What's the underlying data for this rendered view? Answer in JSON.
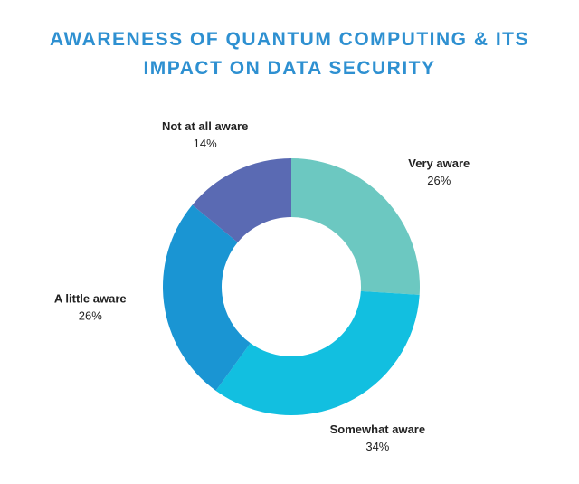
{
  "chart_data": {
    "type": "donut",
    "title": "AWARENESS OF QUANTUM COMPUTING & ITS IMPACT ON DATA SECURITY",
    "categories": [
      "Very aware",
      "Somewhat aware",
      "A little aware",
      "Not at all aware"
    ],
    "values": [
      26,
      34,
      26,
      14
    ],
    "value_labels": [
      "26%",
      "34%",
      "26%",
      "14%"
    ],
    "colors": [
      "#6cc8c1",
      "#12bfe0",
      "#1a95d3",
      "#5a6ab3"
    ]
  }
}
